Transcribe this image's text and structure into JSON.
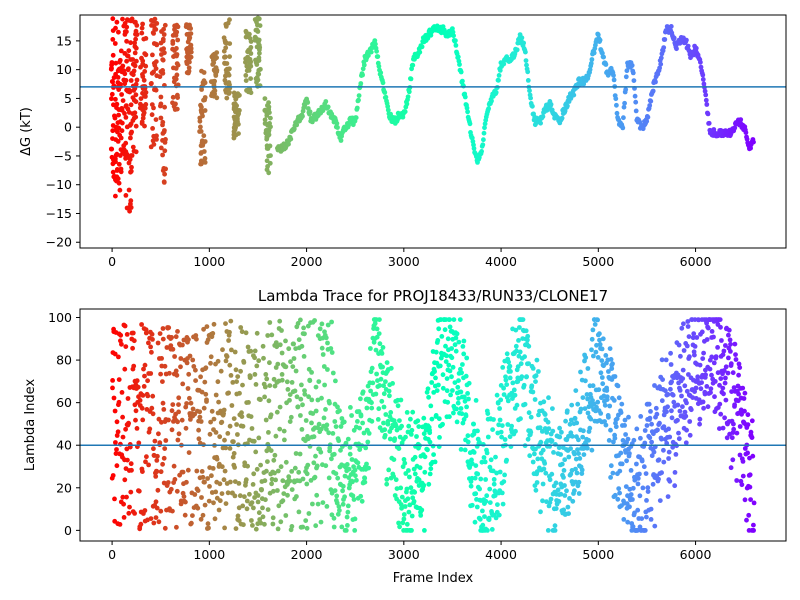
{
  "chart_data": [
    {
      "type": "scatter",
      "title": "",
      "xlabel": "",
      "ylabel": "ΔG (kT)",
      "xlim": [
        -330,
        6930
      ],
      "ylim": [
        -21,
        19.5
      ],
      "xticks": [
        0,
        1000,
        2000,
        3000,
        4000,
        5000,
        6000
      ],
      "yticks": [
        -20,
        -15,
        -10,
        -5,
        0,
        5,
        10,
        15
      ],
      "tick_labels_x": [
        "0",
        "1000",
        "2000",
        "3000",
        "4000",
        "5000",
        "6000"
      ],
      "tick_labels_y": [
        "−20",
        "−15",
        "−10",
        "−5",
        "0",
        "5",
        "10",
        "15"
      ],
      "hline": 7,
      "hline_color": "#1f77b4",
      "colormap": "rainbow (red at frame 0 → violet at last frame)",
      "grid": false,
      "legend": "none",
      "trace_anchors": {
        "x": [
          1700,
          1800,
          1900,
          1950,
          2000,
          2050,
          2100,
          2150,
          2200,
          2250,
          2300,
          2350,
          2400,
          2450,
          2500,
          2550,
          2600,
          2650,
          2700,
          2750,
          2800,
          2850,
          2900,
          2950,
          3000,
          3050,
          3100,
          3150,
          3200,
          3250,
          3300,
          3350,
          3400,
          3450,
          3500,
          3550,
          3600,
          3650,
          3700,
          3750,
          3800,
          3850,
          3900,
          3950,
          4000,
          4050,
          4100,
          4150,
          4200,
          4250,
          4300,
          4350,
          4400,
          4450,
          4500,
          4550,
          4600,
          4650,
          4700,
          4750,
          4800,
          4850,
          4900,
          4950,
          5000,
          5050,
          5100,
          5150,
          5200,
          5250,
          5300,
          5350,
          5400,
          5450,
          5500,
          5550,
          5600,
          5650,
          5700,
          5750,
          5800,
          5850,
          5900,
          5950,
          6000,
          6050,
          6100,
          6150,
          6200,
          6250,
          6300,
          6350,
          6400,
          6450,
          6500,
          6550,
          6600
        ],
        "y": [
          -4,
          -3,
          1,
          2,
          5,
          1,
          2,
          3,
          4,
          2,
          1,
          -2,
          0,
          1,
          1,
          7,
          12,
          13,
          15,
          10,
          6,
          2,
          1,
          2,
          2,
          6,
          12,
          13,
          15,
          16,
          17,
          17,
          17,
          16,
          17,
          13,
          8,
          3,
          -2,
          -6,
          -4,
          2,
          5,
          6,
          11,
          12,
          12,
          13,
          16,
          13,
          5,
          1,
          1,
          3,
          4,
          2,
          1,
          3,
          5,
          6,
          8,
          8,
          9,
          13,
          16,
          12,
          9,
          10,
          1,
          0,
          11,
          11,
          1,
          0,
          1,
          6,
          9,
          12,
          17,
          17,
          14,
          15,
          15,
          12,
          14,
          11,
          6,
          -1,
          -1,
          -1,
          -1,
          -1,
          0,
          1,
          0,
          -4,
          -2
        ]
      },
      "early_vertical_bursts": [
        {
          "x": 20,
          "y_min": -10,
          "y_max": 19
        },
        {
          "x": 60,
          "y_min": -12,
          "y_max": 19
        },
        {
          "x": 120,
          "y_min": -8,
          "y_max": 19
        },
        {
          "x": 170,
          "y_min": -16,
          "y_max": 19
        },
        {
          "x": 230,
          "y_min": -5,
          "y_max": 19
        },
        {
          "x": 320,
          "y_min": 0,
          "y_max": 18
        },
        {
          "x": 430,
          "y_min": -4,
          "y_max": 19
        },
        {
          "x": 520,
          "y_min": -11,
          "y_max": 18
        },
        {
          "x": 650,
          "y_min": 2,
          "y_max": 19
        },
        {
          "x": 790,
          "y_min": 8,
          "y_max": 19
        },
        {
          "x": 930,
          "y_min": -7,
          "y_max": 10
        },
        {
          "x": 1050,
          "y_min": 5,
          "y_max": 13
        },
        {
          "x": 1180,
          "y_min": 5,
          "y_max": 19
        },
        {
          "x": 1280,
          "y_min": -2,
          "y_max": 6
        },
        {
          "x": 1400,
          "y_min": 6,
          "y_max": 17
        },
        {
          "x": 1500,
          "y_min": 7,
          "y_max": 19
        },
        {
          "x": 1600,
          "y_min": -8,
          "y_max": 5
        }
      ]
    },
    {
      "type": "scatter",
      "title": "Lambda Trace for PROJ18433/RUN33/CLONE17",
      "xlabel": "Frame Index",
      "ylabel": "Lambda Index",
      "xlim": [
        -330,
        6930
      ],
      "ylim": [
        -5,
        104
      ],
      "xticks": [
        0,
        1000,
        2000,
        3000,
        4000,
        5000,
        6000
      ],
      "yticks": [
        0,
        20,
        40,
        60,
        80,
        100
      ],
      "tick_labels_x": [
        "0",
        "1000",
        "2000",
        "3000",
        "4000",
        "5000",
        "6000"
      ],
      "tick_labels_y": [
        "0",
        "20",
        "40",
        "60",
        "80",
        "100"
      ],
      "hline": 40,
      "hline_color": "#1f77b4",
      "colormap": "rainbow (red at frame 0 → violet at last frame)",
      "grid": false,
      "legend": "none",
      "lambda_centers": {
        "x": [
          0,
          200,
          400,
          600,
          800,
          1000,
          1200,
          1400,
          1600,
          1800,
          2000,
          2200,
          2400,
          2600,
          2700,
          2800,
          3000,
          3200,
          3400,
          3500,
          3600,
          3800,
          4000,
          4200,
          4400,
          4600,
          4800,
          5000,
          5200,
          5400,
          5600,
          5800,
          6000,
          6200,
          6400,
          6600
        ],
        "y": [
          50,
          50,
          50,
          50,
          50,
          50,
          50,
          50,
          50,
          50,
          50,
          50,
          20,
          40,
          85,
          60,
          20,
          30,
          80,
          85,
          60,
          20,
          40,
          85,
          40,
          20,
          40,
          80,
          40,
          15,
          40,
          60,
          80,
          85,
          60,
          20
        ]
      }
    }
  ]
}
